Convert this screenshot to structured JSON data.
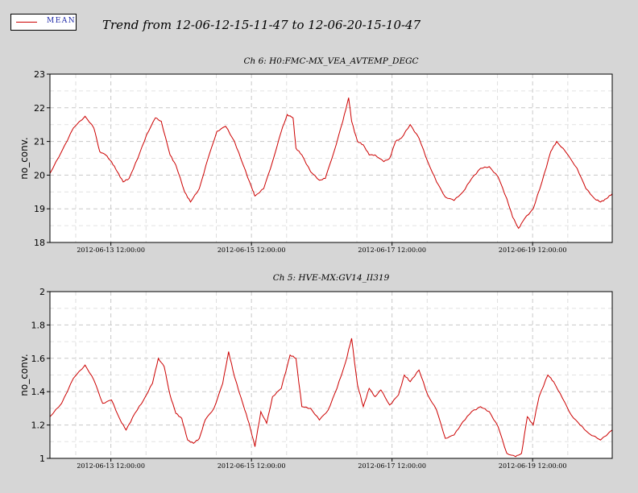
{
  "legend": {
    "label": "MEAN",
    "color": "#cc0000"
  },
  "title": "Trend from 12-06-12-15-11-47 to 12-06-20-15-10-47",
  "chart_data": [
    {
      "type": "line",
      "title": "Ch 6: H0:FMC-MX_VEA_AVTEMP_DEGC",
      "ylabel": "no_conv.",
      "ylim": [
        18,
        23
      ],
      "yticks": [
        "18",
        "19",
        "20",
        "21",
        "22",
        "23"
      ],
      "xlim": [
        "2012-06-12 15:11:47",
        "2012-06-20 15:10:47"
      ],
      "xticks": [
        "2012-06-13 12:00:00",
        "2012-06-15 12:00:00",
        "2012-06-17 12:00:00",
        "2012-06-19 12:00:00"
      ],
      "grid": true,
      "series": [
        {
          "name": "MEAN",
          "color": "#cc0000",
          "points": [
            [
              "2012-06-12 15:11:47",
              20.05
            ],
            [
              "2012-06-12 19:11:47",
              20.7
            ],
            [
              "2012-06-12 23:11:47",
              21.4
            ],
            [
              "2012-06-13 03:11:47",
              21.75
            ],
            [
              "2012-06-13 06:11:47",
              21.4
            ],
            [
              "2012-06-13 08:11:47",
              20.7
            ],
            [
              "2012-06-13 10:11:47",
              20.6
            ],
            [
              "2012-06-13 12:11:47",
              20.4
            ],
            [
              "2012-06-13 14:11:47",
              20.1
            ],
            [
              "2012-06-13 16:11:47",
              19.8
            ],
            [
              "2012-06-13 18:11:47",
              19.9
            ],
            [
              "2012-06-13 21:11:47",
              20.5
            ],
            [
              "2012-06-14 00:11:47",
              21.2
            ],
            [
              "2012-06-14 03:11:47",
              21.7
            ],
            [
              "2012-06-14 05:11:47",
              21.6
            ],
            [
              "2012-06-14 08:11:47",
              20.6
            ],
            [
              "2012-06-14 10:11:47",
              20.3
            ],
            [
              "2012-06-14 13:11:47",
              19.5
            ],
            [
              "2012-06-14 15:11:47",
              19.2
            ],
            [
              "2012-06-14 18:11:47",
              19.6
            ],
            [
              "2012-06-14 21:11:47",
              20.5
            ],
            [
              "2012-06-15 00:11:47",
              21.3
            ],
            [
              "2012-06-15 03:11:47",
              21.45
            ],
            [
              "2012-06-15 06:11:47",
              21.0
            ],
            [
              "2012-06-15 09:11:47",
              20.3
            ],
            [
              "2012-06-15 12:11:47",
              19.6
            ],
            [
              "2012-06-15 13:11:47",
              19.38
            ],
            [
              "2012-06-15 16:11:47",
              19.6
            ],
            [
              "2012-06-15 19:11:47",
              20.4
            ],
            [
              "2012-06-15 22:11:47",
              21.3
            ],
            [
              "2012-06-16 00:11:47",
              21.8
            ],
            [
              "2012-06-16 02:11:47",
              21.7
            ],
            [
              "2012-06-16 03:11:47",
              20.8
            ],
            [
              "2012-06-16 05:11:47",
              20.6
            ],
            [
              "2012-06-16 08:11:47",
              20.1
            ],
            [
              "2012-06-16 11:11:47",
              19.85
            ],
            [
              "2012-06-16 13:11:47",
              19.9
            ],
            [
              "2012-06-16 16:11:47",
              20.7
            ],
            [
              "2012-06-16 19:11:47",
              21.6
            ],
            [
              "2012-06-16 21:11:47",
              22.3
            ],
            [
              "2012-06-16 22:11:47",
              21.6
            ],
            [
              "2012-06-17 00:11:47",
              21.0
            ],
            [
              "2012-06-17 02:11:47",
              20.9
            ],
            [
              "2012-06-17 04:11:47",
              20.6
            ],
            [
              "2012-06-17 06:11:47",
              20.6
            ],
            [
              "2012-06-17 09:11:47",
              20.4
            ],
            [
              "2012-06-17 11:11:47",
              20.5
            ],
            [
              "2012-06-17 13:11:47",
              21.0
            ],
            [
              "2012-06-17 15:11:47",
              21.1
            ],
            [
              "2012-06-17 18:11:47",
              21.5
            ],
            [
              "2012-06-17 21:11:47",
              21.1
            ],
            [
              "2012-06-18 00:11:47",
              20.4
            ],
            [
              "2012-06-18 03:11:47",
              19.8
            ],
            [
              "2012-06-18 06:11:47",
              19.35
            ],
            [
              "2012-06-18 09:11:47",
              19.25
            ],
            [
              "2012-06-18 12:11:47",
              19.5
            ],
            [
              "2012-06-18 15:11:47",
              19.9
            ],
            [
              "2012-06-18 18:11:47",
              20.2
            ],
            [
              "2012-06-18 21:11:47",
              20.25
            ],
            [
              "2012-06-19 00:11:47",
              19.95
            ],
            [
              "2012-06-19 03:11:47",
              19.3
            ],
            [
              "2012-06-19 05:11:47",
              18.75
            ],
            [
              "2012-06-19 07:11:47",
              18.42
            ],
            [
              "2012-06-19 09:11:47",
              18.7
            ],
            [
              "2012-06-19 12:11:47",
              19.0
            ],
            [
              "2012-06-19 15:11:47",
              19.8
            ],
            [
              "2012-06-19 18:11:47",
              20.7
            ],
            [
              "2012-06-19 20:11:47",
              21.0
            ],
            [
              "2012-06-19 23:11:47",
              20.7
            ],
            [
              "2012-06-20 03:11:47",
              20.2
            ],
            [
              "2012-06-20 06:11:47",
              19.6
            ],
            [
              "2012-06-20 09:11:47",
              19.3
            ],
            [
              "2012-06-20 11:11:47",
              19.2
            ],
            [
              "2012-06-20 13:11:47",
              19.3
            ],
            [
              "2012-06-20 15:10:47",
              19.45
            ]
          ]
        }
      ]
    },
    {
      "type": "line",
      "title": "Ch 5: HVE-MX:GV14_II319",
      "ylabel": "no_conv.",
      "ylim": [
        1,
        2
      ],
      "yticks": [
        "1",
        "1.2",
        "1.4",
        "1.6",
        "1.8",
        "2"
      ],
      "xlim": [
        "2012-06-12 15:11:47",
        "2012-06-20 15:10:47"
      ],
      "xticks": [
        "2012-06-13 12:00:00",
        "2012-06-15 12:00:00",
        "2012-06-17 12:00:00",
        "2012-06-19 12:00:00"
      ],
      "grid": true,
      "series": [
        {
          "name": "MEAN",
          "color": "#cc0000",
          "points": [
            [
              "2012-06-12 15:11:47",
              1.25
            ],
            [
              "2012-06-12 19:11:47",
              1.33
            ],
            [
              "2012-06-12 23:11:47",
              1.48
            ],
            [
              "2012-06-13 03:11:47",
              1.56
            ],
            [
              "2012-06-13 06:11:47",
              1.47
            ],
            [
              "2012-06-13 09:11:47",
              1.33
            ],
            [
              "2012-06-13 12:11:47",
              1.35
            ],
            [
              "2012-06-13 15:11:47",
              1.23
            ],
            [
              "2012-06-13 17:11:47",
              1.17
            ],
            [
              "2012-06-13 20:11:47",
              1.27
            ],
            [
              "2012-06-13 23:11:47",
              1.35
            ],
            [
              "2012-06-14 02:11:47",
              1.45
            ],
            [
              "2012-06-14 04:11:47",
              1.6
            ],
            [
              "2012-06-14 06:11:47",
              1.55
            ],
            [
              "2012-06-14 08:11:47",
              1.38
            ],
            [
              "2012-06-14 10:11:47",
              1.27
            ],
            [
              "2012-06-14 12:11:47",
              1.24
            ],
            [
              "2012-06-14 14:11:47",
              1.11
            ],
            [
              "2012-06-14 16:11:47",
              1.09
            ],
            [
              "2012-06-14 18:11:47",
              1.12
            ],
            [
              "2012-06-14 20:11:47",
              1.23
            ],
            [
              "2012-06-14 23:11:47",
              1.3
            ],
            [
              "2012-06-15 02:11:47",
              1.45
            ],
            [
              "2012-06-15 04:11:47",
              1.64
            ],
            [
              "2012-06-15 06:11:47",
              1.49
            ],
            [
              "2012-06-15 09:11:47",
              1.32
            ],
            [
              "2012-06-15 11:11:47",
              1.21
            ],
            [
              "2012-06-15 13:11:47",
              1.07
            ],
            [
              "2012-06-15 15:11:47",
              1.28
            ],
            [
              "2012-06-15 17:11:47",
              1.21
            ],
            [
              "2012-06-15 19:11:47",
              1.37
            ],
            [
              "2012-06-15 22:11:47",
              1.42
            ],
            [
              "2012-06-16 01:11:47",
              1.62
            ],
            [
              "2012-06-16 03:11:47",
              1.6
            ],
            [
              "2012-06-16 05:11:47",
              1.31
            ],
            [
              "2012-06-16 08:11:47",
              1.3
            ],
            [
              "2012-06-16 11:11:47",
              1.23
            ],
            [
              "2012-06-16 14:11:47",
              1.29
            ],
            [
              "2012-06-16 17:11:47",
              1.42
            ],
            [
              "2012-06-16 20:11:47",
              1.58
            ],
            [
              "2012-06-16 22:11:47",
              1.72
            ],
            [
              "2012-06-17 00:11:47",
              1.44
            ],
            [
              "2012-06-17 02:11:47",
              1.31
            ],
            [
              "2012-06-17 04:11:47",
              1.42
            ],
            [
              "2012-06-17 06:11:47",
              1.37
            ],
            [
              "2012-06-17 08:11:47",
              1.41
            ],
            [
              "2012-06-17 11:11:47",
              1.32
            ],
            [
              "2012-06-17 14:11:47",
              1.38
            ],
            [
              "2012-06-17 16:11:47",
              1.5
            ],
            [
              "2012-06-17 18:11:47",
              1.46
            ],
            [
              "2012-06-17 21:11:47",
              1.53
            ],
            [
              "2012-06-18 00:11:47",
              1.38
            ],
            [
              "2012-06-18 03:11:47",
              1.29
            ],
            [
              "2012-06-18 06:11:47",
              1.12
            ],
            [
              "2012-06-18 09:11:47",
              1.14
            ],
            [
              "2012-06-18 12:11:47",
              1.22
            ],
            [
              "2012-06-18 15:11:47",
              1.28
            ],
            [
              "2012-06-18 18:11:47",
              1.31
            ],
            [
              "2012-06-18 21:11:47",
              1.28
            ],
            [
              "2012-06-19 00:11:47",
              1.19
            ],
            [
              "2012-06-19 03:11:47",
              1.03
            ],
            [
              "2012-06-19 06:11:47",
              1.01
            ],
            [
              "2012-06-19 08:11:47",
              1.03
            ],
            [
              "2012-06-19 10:11:47",
              1.25
            ],
            [
              "2012-06-19 12:11:47",
              1.2
            ],
            [
              "2012-06-19 14:11:47",
              1.37
            ],
            [
              "2012-06-19 17:11:47",
              1.5
            ],
            [
              "2012-06-19 19:11:47",
              1.46
            ],
            [
              "2012-06-19 22:11:47",
              1.36
            ],
            [
              "2012-06-20 01:11:47",
              1.26
            ],
            [
              "2012-06-20 04:11:47",
              1.2
            ],
            [
              "2012-06-20 07:11:47",
              1.15
            ],
            [
              "2012-06-20 11:11:47",
              1.11
            ],
            [
              "2012-06-20 15:10:47",
              1.17
            ]
          ]
        }
      ]
    }
  ]
}
